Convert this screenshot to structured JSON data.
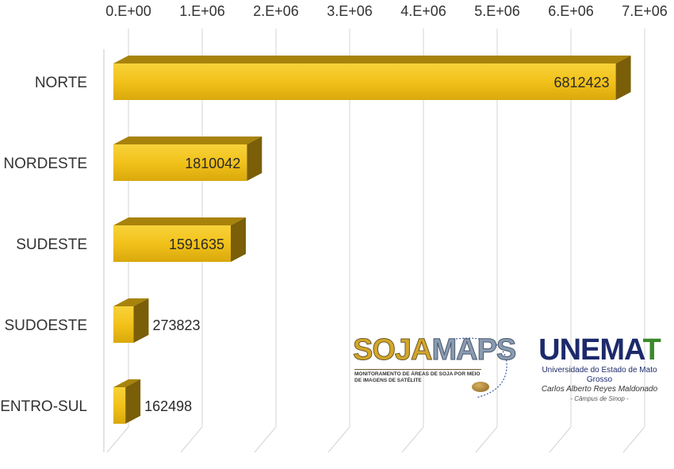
{
  "chart_data": {
    "type": "bar",
    "orientation": "horizontal",
    "categories": [
      "NORTE",
      "NORDESTE",
      "SUDESTE",
      "SUDOESTE",
      "CENTRO-SUL"
    ],
    "values": [
      6812423,
      1810042,
      1591635,
      273823,
      162498
    ],
    "value_labels": [
      "6812423",
      "1810042",
      "1591635",
      "273823",
      "162498"
    ],
    "xlim": [
      0,
      7000000
    ],
    "x_ticks": [
      0,
      1000000,
      2000000,
      3000000,
      4000000,
      5000000,
      6000000,
      7000000
    ],
    "x_tick_labels": [
      "0.E+00",
      "1.E+06",
      "2.E+06",
      "3.E+06",
      "4.E+06",
      "5.E+06",
      "6.E+06",
      "7.E+06"
    ],
    "x_axis_position": "top",
    "grid": true,
    "style": "3d",
    "bar_color": "#f2c21a",
    "bar_top_color": "#a8830c",
    "bar_side_color": "#7a5e08"
  },
  "logos": {
    "sojamaps": {
      "word_a": "SOJA",
      "word_b": "MAPS",
      "subtitle": "MONITORAMENTO DE ÁREAS DE SOJA POR MEIO DE IMAGENS DE SATÉLITE"
    },
    "unemat": {
      "word_a": "UNEMA",
      "word_b": "T",
      "line1": "Universidade do Estado de Mato Grosso",
      "line2": "Carlos Alberto Reyes Maldonado",
      "line3": "- Câmpus de Sinop -"
    }
  }
}
